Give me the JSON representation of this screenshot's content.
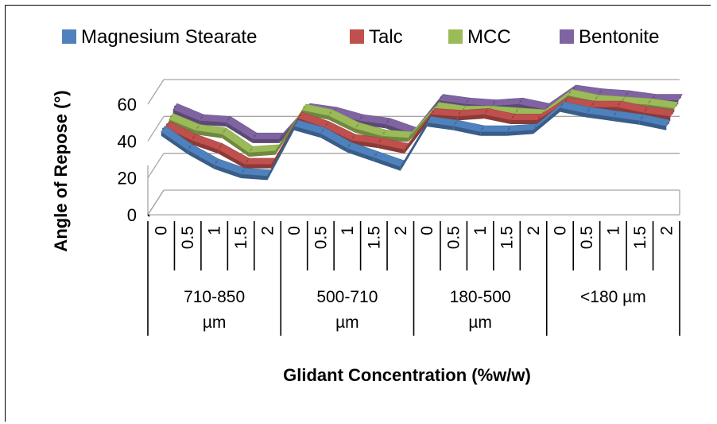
{
  "chart_data": {
    "type": "area",
    "style": "3d-ribbon-line",
    "title": "",
    "xlabel": "Glidant Concentration (%w/w)",
    "ylabel": "Angle of Repose (°)",
    "ylim": [
      0,
      60
    ],
    "yticks": [
      0,
      20,
      40,
      60
    ],
    "grid": true,
    "legend_position": "top",
    "groups": [
      {
        "label": "710-850 µm",
        "categories": [
          "0",
          "0.5",
          "1",
          "1.5",
          "2"
        ]
      },
      {
        "label": "500-710 µm",
        "categories": [
          "0",
          "0.5",
          "1",
          "1.5",
          "2"
        ]
      },
      {
        "label": "180-500 µm",
        "categories": [
          "0",
          "0.5",
          "1",
          "1.5",
          "2"
        ]
      },
      {
        "label": "<180 µm",
        "categories": [
          "0",
          "0.5",
          "1",
          "1.5",
          "2"
        ]
      }
    ],
    "series": [
      {
        "name": "Magnesium Stearate",
        "color": "#4F81BD",
        "values": [
          45,
          35,
          27,
          22,
          21,
          48,
          44,
          36,
          31,
          26,
          50,
          48,
          45,
          45,
          46,
          58,
          55,
          53,
          51,
          48
        ]
      },
      {
        "name": "Talc",
        "color": "#C0504D",
        "values": [
          44,
          37,
          32,
          24,
          24,
          49,
          44,
          37,
          35,
          32,
          51,
          50,
          51,
          48,
          48,
          57,
          55,
          55,
          52,
          50
        ]
      },
      {
        "name": "MCC",
        "color": "#9BBB59",
        "values": [
          45,
          39,
          37,
          27,
          28,
          50,
          47,
          40,
          36,
          35,
          51,
          49,
          49,
          48,
          47,
          58,
          55,
          54,
          53,
          51
        ]
      },
      {
        "name": "Bentonite",
        "color": "#8064A2",
        "values": [
          47,
          41,
          40,
          31,
          31,
          47,
          45,
          41,
          39,
          34,
          52,
          50,
          49,
          50,
          47,
          57,
          55,
          54,
          52,
          52
        ]
      }
    ]
  }
}
